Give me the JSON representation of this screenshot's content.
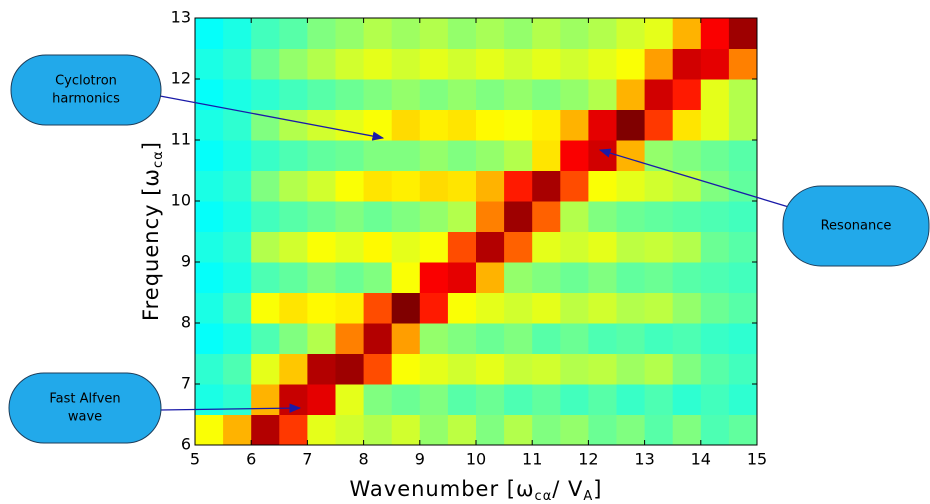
{
  "chart_data": {
    "type": "heatmap",
    "colormap": "jet",
    "xlabel": [
      {
        "text": "Wavenumber [ω",
        "sub": false
      },
      {
        "text": "cα",
        "sub": true
      },
      {
        "text": "/ V",
        "sub": false
      },
      {
        "text": "A",
        "sub": true
      },
      {
        "text": "]",
        "sub": false
      }
    ],
    "ylabel": [
      {
        "text": "Frequency [ω",
        "sub": false
      },
      {
        "text": "cα",
        "sub": true
      },
      {
        "text": "]",
        "sub": false
      }
    ],
    "xlim": [
      5,
      15
    ],
    "ylim": [
      6,
      13
    ],
    "xticks": [
      5,
      6,
      7,
      8,
      9,
      10,
      11,
      12,
      13,
      14,
      15
    ],
    "yticks": [
      6,
      7,
      8,
      9,
      10,
      11,
      12,
      13
    ],
    "xbins": [
      5,
      5.5,
      6,
      6.5,
      7,
      7.5,
      8,
      8.5,
      9,
      9.5,
      10,
      10.5,
      11,
      11.5,
      12,
      12.5,
      13,
      13.5,
      14,
      14.5,
      15
    ],
    "ybins": [
      6,
      6.5,
      7,
      7.5,
      8,
      8.5,
      9,
      9.5,
      10,
      10.5,
      11,
      11.5,
      12,
      12.5,
      13
    ],
    "z": [
      [
        0.62,
        0.7,
        0.95,
        0.82,
        0.6,
        0.58,
        0.55,
        0.58,
        0.52,
        0.56,
        0.5,
        0.55,
        0.5,
        0.52,
        0.48,
        0.5,
        0.46,
        0.5,
        0.45,
        0.47
      ],
      [
        0.4,
        0.42,
        0.7,
        0.93,
        0.9,
        0.6,
        0.5,
        0.48,
        0.5,
        0.46,
        0.48,
        0.45,
        0.47,
        0.44,
        0.46,
        0.43,
        0.45,
        0.42,
        0.44,
        0.42
      ],
      [
        0.42,
        0.45,
        0.6,
        0.68,
        0.95,
        0.97,
        0.8,
        0.62,
        0.6,
        0.58,
        0.6,
        0.57,
        0.58,
        0.55,
        0.56,
        0.53,
        0.55,
        0.5,
        0.46,
        0.44
      ],
      [
        0.38,
        0.4,
        0.45,
        0.5,
        0.55,
        0.75,
        0.95,
        0.72,
        0.52,
        0.5,
        0.48,
        0.5,
        0.46,
        0.48,
        0.45,
        0.46,
        0.44,
        0.45,
        0.43,
        0.42
      ],
      [
        0.4,
        0.44,
        0.62,
        0.65,
        0.63,
        0.64,
        0.8,
        1.0,
        0.85,
        0.62,
        0.6,
        0.58,
        0.6,
        0.56,
        0.58,
        0.55,
        0.56,
        0.52,
        0.48,
        0.46
      ],
      [
        0.38,
        0.4,
        0.45,
        0.47,
        0.5,
        0.48,
        0.5,
        0.62,
        0.88,
        0.9,
        0.7,
        0.52,
        0.5,
        0.48,
        0.5,
        0.47,
        0.48,
        0.46,
        0.45,
        0.44
      ],
      [
        0.4,
        0.42,
        0.55,
        0.58,
        0.62,
        0.6,
        0.63,
        0.6,
        0.62,
        0.8,
        0.95,
        0.78,
        0.6,
        0.58,
        0.6,
        0.56,
        0.57,
        0.55,
        0.48,
        0.46
      ],
      [
        0.38,
        0.4,
        0.44,
        0.46,
        0.48,
        0.5,
        0.48,
        0.5,
        0.52,
        0.55,
        0.75,
        0.97,
        0.78,
        0.55,
        0.5,
        0.48,
        0.47,
        0.46,
        0.45,
        0.44
      ],
      [
        0.4,
        0.42,
        0.5,
        0.55,
        0.58,
        0.62,
        0.65,
        0.64,
        0.66,
        0.65,
        0.7,
        0.85,
        0.96,
        0.8,
        0.62,
        0.6,
        0.58,
        0.56,
        0.5,
        0.47
      ],
      [
        0.38,
        0.4,
        0.43,
        0.45,
        0.47,
        0.48,
        0.5,
        0.5,
        0.52,
        0.5,
        0.52,
        0.55,
        0.65,
        0.88,
        0.92,
        0.7,
        0.52,
        0.5,
        0.48,
        0.46
      ],
      [
        0.4,
        0.42,
        0.5,
        0.55,
        0.58,
        0.6,
        0.62,
        0.66,
        0.64,
        0.65,
        0.63,
        0.62,
        0.64,
        0.7,
        0.9,
        1.0,
        0.82,
        0.65,
        0.6,
        0.55
      ],
      [
        0.38,
        0.4,
        0.42,
        0.44,
        0.46,
        0.48,
        0.5,
        0.52,
        0.5,
        0.52,
        0.5,
        0.52,
        0.5,
        0.52,
        0.55,
        0.7,
        0.92,
        0.85,
        0.6,
        0.55
      ],
      [
        0.4,
        0.42,
        0.48,
        0.52,
        0.55,
        0.58,
        0.6,
        0.58,
        0.6,
        0.58,
        0.6,
        0.58,
        0.6,
        0.58,
        0.6,
        0.62,
        0.72,
        0.92,
        0.9,
        0.75
      ],
      [
        0.38,
        0.4,
        0.44,
        0.46,
        0.5,
        0.52,
        0.55,
        0.53,
        0.55,
        0.52,
        0.54,
        0.52,
        0.55,
        0.53,
        0.55,
        0.58,
        0.6,
        0.7,
        0.88,
        0.97
      ]
    ],
    "annotations": [
      {
        "lines": [
          "Cyclotron",
          "harmonics"
        ]
      },
      {
        "lines": [
          "Resonance"
        ]
      },
      {
        "lines": [
          "Fast Alfven",
          "wave"
        ]
      }
    ]
  }
}
